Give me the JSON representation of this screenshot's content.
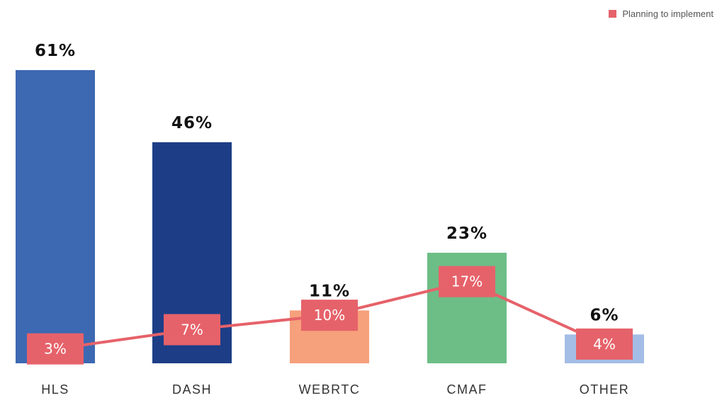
{
  "chart_data": {
    "type": "bar",
    "categories": [
      "HLS",
      "DASH",
      "WEBRTC",
      "CMAF",
      "OTHER"
    ],
    "values": [
      61,
      46,
      11,
      23,
      6
    ],
    "value_labels": [
      "61%",
      "46%",
      "11%",
      "23%",
      "6%"
    ],
    "bar_colors": [
      "#3d68b2",
      "#1d3e87",
      "#f6a07c",
      "#6dbd87",
      "#a3bde6"
    ],
    "line_series": {
      "name": "Planning to implement",
      "type": "line",
      "values": [
        3,
        7,
        10,
        17,
        4
      ],
      "labels": [
        "3%",
        "7%",
        "10%",
        "17%",
        "4%"
      ],
      "color": "#e6626a"
    },
    "ylim": [
      0,
      61
    ],
    "legend_position": "top-right",
    "grid": false
  }
}
